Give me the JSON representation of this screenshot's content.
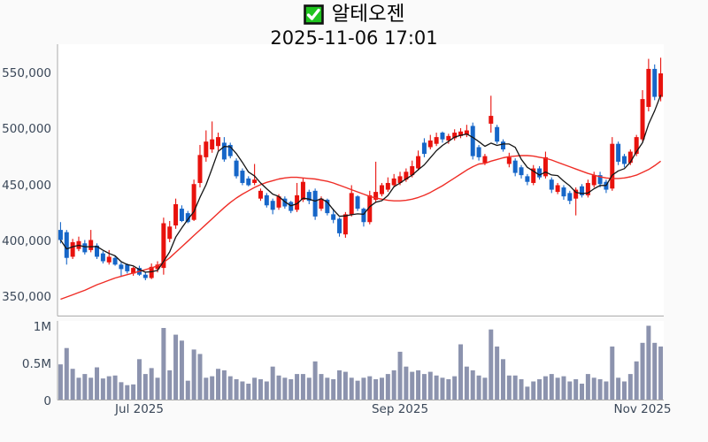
{
  "header": {
    "title": "알테오젠",
    "datetime": "2025-11-06 17:01",
    "checkbox_icon": {
      "fill": "#1ec41e",
      "border": "#111111",
      "check": "#ffffff"
    }
  },
  "chart_data": {
    "type": "candlestick",
    "title": "알테오젠",
    "subtitle": "2025-11-06 17:01",
    "panels": [
      "price",
      "volume"
    ],
    "grid": false,
    "price_axis": {
      "ticks": [
        "550,000",
        "500,000",
        "450,000",
        "400,000",
        "350,000"
      ],
      "values": [
        550000,
        500000,
        450000,
        400000,
        350000
      ],
      "range": [
        333000,
        576000
      ]
    },
    "volume_axis": {
      "ticks": [
        "1M",
        "0.5M",
        "0"
      ],
      "values_millions": [
        1,
        0.5,
        0
      ],
      "range_millions": [
        0,
        1.06
      ]
    },
    "x_ticks": [
      {
        "index": 13,
        "label": "Jul 2025"
      },
      {
        "index": 56,
        "label": "Sep 2025"
      },
      {
        "index": 96,
        "label": "Nov 2025"
      }
    ],
    "series_legend": {
      "candles_up_color": "#e8120d",
      "candles_down_color": "#1666c8",
      "ma_short_color": "#151515",
      "ma_long_color": "#ef2d26",
      "volume_color": "#8c93ae"
    },
    "colors": {
      "up": "#e8120d",
      "down": "#1666c8",
      "ma_short": "#151515",
      "ma_long": "#ef2d26",
      "volume": "#8c93ae",
      "spine": "#ababab",
      "plot_bg": "#ffffff",
      "page_bg": "#fafafa",
      "label": "#3b4859"
    },
    "candles_format": [
      "open",
      "high",
      "low",
      "close",
      "volume_millions"
    ],
    "candles": [
      [
        410000,
        417000,
        398000,
        401000,
        0.48
      ],
      [
        408000,
        410000,
        379000,
        385000,
        0.7
      ],
      [
        386000,
        402000,
        384000,
        399000,
        0.42
      ],
      [
        393000,
        404000,
        391000,
        400000,
        0.3
      ],
      [
        398000,
        401000,
        388000,
        390000,
        0.35
      ],
      [
        392000,
        410000,
        390000,
        401000,
        0.3
      ],
      [
        396000,
        398000,
        384000,
        386000,
        0.44
      ],
      [
        389000,
        391000,
        380000,
        382000,
        0.29
      ],
      [
        381000,
        392000,
        379000,
        386000,
        0.32
      ],
      [
        385000,
        387000,
        378000,
        379000,
        0.33
      ],
      [
        379000,
        381000,
        368000,
        375000,
        0.24
      ],
      [
        379000,
        380000,
        371000,
        373000,
        0.2
      ],
      [
        371000,
        377000,
        369000,
        376000,
        0.21
      ],
      [
        376000,
        378000,
        369000,
        370000,
        0.55
      ],
      [
        370000,
        372000,
        365000,
        367000,
        0.35
      ],
      [
        367000,
        380000,
        366000,
        377000,
        0.43
      ],
      [
        375000,
        382000,
        372000,
        379000,
        0.3
      ],
      [
        376000,
        421000,
        370000,
        416000,
        0.97
      ],
      [
        402000,
        418000,
        399000,
        413000,
        0.4
      ],
      [
        414000,
        438000,
        411000,
        433000,
        0.88
      ],
      [
        429000,
        432000,
        417000,
        418000,
        0.8
      ],
      [
        425000,
        427000,
        416000,
        417000,
        0.26
      ],
      [
        419000,
        455000,
        418000,
        451000,
        0.68
      ],
      [
        452000,
        486000,
        448000,
        477000,
        0.62
      ],
      [
        475000,
        499000,
        471000,
        489000,
        0.3
      ],
      [
        482000,
        507000,
        479000,
        491000,
        0.32
      ],
      [
        485000,
        497000,
        481000,
        493000,
        0.42
      ],
      [
        488000,
        493000,
        471000,
        473000,
        0.4
      ],
      [
        486000,
        488000,
        474000,
        476000,
        0.32
      ],
      [
        472000,
        474000,
        456000,
        458000,
        0.28
      ],
      [
        463000,
        465000,
        450000,
        452000,
        0.25
      ],
      [
        456000,
        458000,
        449000,
        450000,
        0.22
      ],
      [
        452000,
        469000,
        450000,
        455000,
        0.3
      ],
      [
        438000,
        447000,
        436000,
        445000,
        0.28
      ],
      [
        441000,
        443000,
        430000,
        432000,
        0.25
      ],
      [
        436000,
        438000,
        424000,
        428000,
        0.45
      ],
      [
        430000,
        442000,
        428000,
        440000,
        0.33
      ],
      [
        438000,
        440000,
        429000,
        431000,
        0.3
      ],
      [
        435000,
        436000,
        425000,
        427000,
        0.28
      ],
      [
        428000,
        452000,
        426000,
        441000,
        0.35
      ],
      [
        437000,
        456000,
        435000,
        453000,
        0.35
      ],
      [
        444000,
        446000,
        433000,
        436000,
        0.3
      ],
      [
        445000,
        447000,
        419000,
        422000,
        0.52
      ],
      [
        429000,
        440000,
        427000,
        438000,
        0.35
      ],
      [
        437000,
        438000,
        423000,
        425000,
        0.3
      ],
      [
        424000,
        429000,
        416000,
        419000,
        0.28
      ],
      [
        420000,
        421000,
        404000,
        407000,
        0.4
      ],
      [
        406000,
        426000,
        403000,
        424000,
        0.38
      ],
      [
        424000,
        450000,
        422000,
        443000,
        0.3
      ],
      [
        440000,
        441000,
        427000,
        429000,
        0.26
      ],
      [
        429000,
        430000,
        413000,
        417000,
        0.3
      ],
      [
        417000,
        445000,
        415000,
        441000,
        0.32
      ],
      [
        437000,
        471000,
        435000,
        444000,
        0.28
      ],
      [
        442000,
        452000,
        440000,
        450000,
        0.3
      ],
      [
        446000,
        457000,
        444000,
        452000,
        0.35
      ],
      [
        450000,
        460000,
        448000,
        456000,
        0.4
      ],
      [
        452000,
        462000,
        450000,
        458000,
        0.65
      ],
      [
        455000,
        465000,
        453000,
        462000,
        0.45
      ],
      [
        459000,
        472000,
        457000,
        467000,
        0.38
      ],
      [
        465000,
        481000,
        463000,
        476000,
        0.4
      ],
      [
        488000,
        492000,
        475000,
        478000,
        0.35
      ],
      [
        484000,
        495000,
        482000,
        490000,
        0.38
      ],
      [
        487000,
        497000,
        485000,
        493000,
        0.33
      ],
      [
        497000,
        498000,
        488000,
        491000,
        0.3
      ],
      [
        490000,
        496000,
        487000,
        494000,
        0.28
      ],
      [
        492000,
        500000,
        490000,
        497000,
        0.32
      ],
      [
        494000,
        501000,
        492000,
        498000,
        0.75
      ],
      [
        495000,
        504000,
        493000,
        499000,
        0.45
      ],
      [
        503000,
        506000,
        473000,
        476000,
        0.4
      ],
      [
        484000,
        486000,
        472000,
        475000,
        0.33
      ],
      [
        470000,
        478000,
        468000,
        476000,
        0.3
      ],
      [
        505000,
        530000,
        497000,
        512000,
        0.95
      ],
      [
        502000,
        504000,
        487000,
        489000,
        0.72
      ],
      [
        489000,
        491000,
        480000,
        482000,
        0.55
      ],
      [
        469000,
        479000,
        466000,
        475000,
        0.33
      ],
      [
        472000,
        474000,
        458000,
        461000,
        0.33
      ],
      [
        466000,
        468000,
        456000,
        459000,
        0.28
      ],
      [
        458000,
        460000,
        450000,
        453000,
        0.18
      ],
      [
        452000,
        468000,
        450000,
        465000,
        0.25
      ],
      [
        465000,
        467000,
        455000,
        457000,
        0.28
      ],
      [
        458000,
        480000,
        456000,
        475000,
        0.32
      ],
      [
        455000,
        457000,
        443000,
        446000,
        0.35
      ],
      [
        444000,
        452000,
        442000,
        450000,
        0.3
      ],
      [
        448000,
        450000,
        437000,
        440000,
        0.32
      ],
      [
        443000,
        445000,
        433000,
        436000,
        0.25
      ],
      [
        438000,
        448000,
        423000,
        446000,
        0.28
      ],
      [
        449000,
        451000,
        439000,
        441000,
        0.22
      ],
      [
        441000,
        455000,
        439000,
        452000,
        0.35
      ],
      [
        450000,
        462000,
        448000,
        459000,
        0.3
      ],
      [
        459000,
        462000,
        448000,
        451000,
        0.28
      ],
      [
        453000,
        455000,
        443000,
        446000,
        0.25
      ],
      [
        447000,
        493000,
        445000,
        487000,
        0.72
      ],
      [
        487000,
        489000,
        468000,
        471000,
        0.3
      ],
      [
        476000,
        478000,
        466000,
        469000,
        0.25
      ],
      [
        470000,
        482000,
        468000,
        480000,
        0.35
      ],
      [
        478000,
        495000,
        476000,
        493000,
        0.52
      ],
      [
        491000,
        535000,
        489000,
        527000,
        0.77
      ],
      [
        520000,
        563000,
        516000,
        554000,
        1.0
      ],
      [
        554000,
        558000,
        526000,
        529000,
        0.77
      ],
      [
        529000,
        564000,
        525000,
        550000,
        0.72
      ]
    ],
    "ma_short_window": 5,
    "ma_long": [
      348000,
      350000,
      352000,
      354000,
      356000,
      358500,
      361000,
      363000,
      365000,
      367000,
      368500,
      370000,
      371500,
      373000,
      374500,
      376000,
      378000,
      381000,
      385000,
      390000,
      395000,
      400000,
      405000,
      410000,
      415000,
      420000,
      425000,
      430000,
      434500,
      438500,
      442000,
      445000,
      448000,
      450500,
      452500,
      454000,
      455500,
      456500,
      457000,
      457000,
      456500,
      456000,
      455500,
      454500,
      453500,
      452000,
      450000,
      448000,
      446000,
      444000,
      442000,
      440000,
      438500,
      437500,
      436500,
      436000,
      436000,
      436500,
      437500,
      439000,
      441000,
      443500,
      446500,
      449500,
      453000,
      456500,
      460000,
      463500,
      466500,
      469000,
      469500,
      471500,
      473000,
      474500,
      475500,
      476000,
      476500,
      476500,
      476000,
      475000,
      474000,
      472500,
      470500,
      468500,
      466500,
      464500,
      462500,
      460500,
      459000,
      457500,
      456500,
      456000,
      456000,
      456500,
      457500,
      459000,
      461500,
      464000,
      467500,
      471500
    ]
  }
}
